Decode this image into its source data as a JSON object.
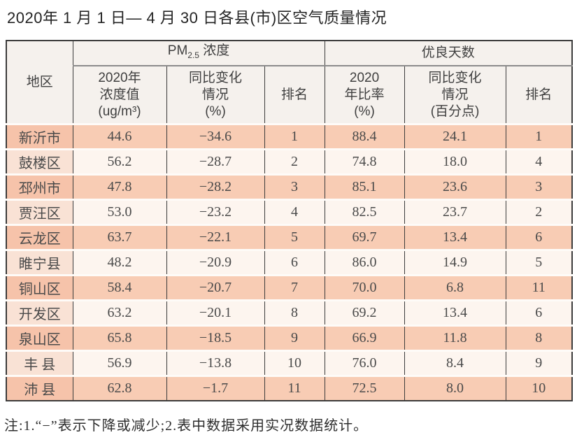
{
  "title": "2020年 1 月 1 日— 4 月 30 日各县(市)区空气质量情况",
  "table": {
    "header": {
      "region": "地区",
      "pm_group": {
        "main": "PM",
        "sub": "2.5",
        "rest": " 浓度"
      },
      "good_group": "优良天数",
      "sub_columns": {
        "pm_value": "2020年\n浓度值\n(ug/m³)",
        "pm_change": "同比变化\n情况\n(%)",
        "pm_rank": "排名",
        "good_rate": "2020\n年比率\n(%)",
        "good_change": "同比变化\n情况\n(百分点)",
        "good_rank": "排名"
      }
    },
    "rows": [
      {
        "region": "新沂市",
        "pm_value": "44.6",
        "pm_change": "−34.6",
        "pm_rank": "1",
        "good_rate": "88.4",
        "good_change": "24.1",
        "good_rank": "1"
      },
      {
        "region": "鼓楼区",
        "pm_value": "56.2",
        "pm_change": "−28.7",
        "pm_rank": "2",
        "good_rate": "74.8",
        "good_change": "18.0",
        "good_rank": "4"
      },
      {
        "region": "邳州市",
        "pm_value": "47.8",
        "pm_change": "−28.2",
        "pm_rank": "3",
        "good_rate": "85.1",
        "good_change": "23.6",
        "good_rank": "3"
      },
      {
        "region": "贾汪区",
        "pm_value": "53.0",
        "pm_change": "−23.2",
        "pm_rank": "4",
        "good_rate": "82.5",
        "good_change": "23.7",
        "good_rank": "2"
      },
      {
        "region": "云龙区",
        "pm_value": "63.7",
        "pm_change": "−22.1",
        "pm_rank": "5",
        "good_rate": "69.7",
        "good_change": "13.4",
        "good_rank": "6"
      },
      {
        "region": "睢宁县",
        "pm_value": "48.2",
        "pm_change": "−20.9",
        "pm_rank": "6",
        "good_rate": "86.0",
        "good_change": "14.9",
        "good_rank": "5"
      },
      {
        "region": "铜山区",
        "pm_value": "58.4",
        "pm_change": "−20.7",
        "pm_rank": "7",
        "good_rate": "70.0",
        "good_change": "6.8",
        "good_rank": "11"
      },
      {
        "region": "开发区",
        "pm_value": "63.2",
        "pm_change": "−20.1",
        "pm_rank": "8",
        "good_rate": "69.2",
        "good_change": "13.4",
        "good_rank": "6"
      },
      {
        "region": "泉山区",
        "pm_value": "65.8",
        "pm_change": "−18.5",
        "pm_rank": "9",
        "good_rate": "66.9",
        "good_change": "11.8",
        "good_rank": "8"
      },
      {
        "region": "丰 县",
        "pm_value": "56.9",
        "pm_change": "−13.8",
        "pm_rank": "10",
        "good_rate": "76.0",
        "good_change": "8.4",
        "good_rank": "9"
      },
      {
        "region": "沛 县",
        "pm_value": "62.8",
        "pm_change": "−1.7",
        "pm_rank": "11",
        "good_rate": "72.5",
        "good_change": "8.0",
        "good_rank": "10"
      }
    ]
  },
  "note": "注:1.“−”表示下降或减少;2.表中数据采用实况数据统计。",
  "colors": {
    "row_salmon": "#f8ccb4",
    "row_light": "#fdf5ef",
    "header_bg": "#f5f1ed",
    "border": "#3c3c3c"
  }
}
